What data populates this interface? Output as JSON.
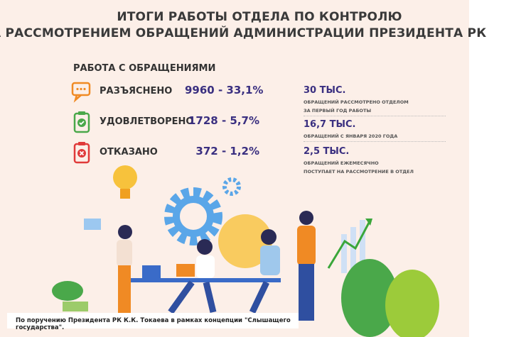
{
  "title": {
    "line1": "ИТОГИ РАБОТЫ ОТДЕЛА ПО КОНТРОЛЮ",
    "line2": "ЗА РАССМОТРЕНИЕМ ОБРАЩЕНИЙ АДМИНИСТРАЦИИ ПРЕЗИДЕНТА РК"
  },
  "section_title": "РАБОТА С ОБРАЩЕНИЯМИ",
  "rows": [
    {
      "icon": "chat-bubbles-icon",
      "label": "РАЗЪЯСНЕНО",
      "value": "9960 - 33,1%",
      "color": "#f08a24"
    },
    {
      "icon": "clipboard-check-icon",
      "label": "УДОВЛЕТВОРЕНО",
      "value": "1728 - 5,7%",
      "color": "#4aa84a"
    },
    {
      "icon": "clipboard-x-icon",
      "label": "ОТКАЗАНО",
      "value": "372 - 1,2%",
      "color": "#e03a3a"
    }
  ],
  "stats": [
    {
      "value": "30 ТЫС.",
      "line1": "ОБРАЩЕНИЙ РАССМОТРЕНО ОТДЕЛОМ",
      "line2": "ЗА ПЕРВЫЙ ГОД РАБОТЫ"
    },
    {
      "value": "16,7 ТЫС.",
      "line1": "ОБРАЩЕНИЙ С ЯНВАРЯ 2020 ГОДА"
    },
    {
      "value": "2,5 ТЫС.",
      "line1": "ОБРАЩЕНИЙ ЕЖЕМЕСЯЧНО",
      "line2": "ПОСТУПАЕТ НА РАССМОТРЕНИЕ В ОТДЕЛ"
    }
  ],
  "caption": "По поручению Президента РК К.К. Токаева в рамках концепции \"Слышащего государства\".",
  "colors": {
    "accent": "#3a2f80",
    "background": "#fcefe8"
  }
}
